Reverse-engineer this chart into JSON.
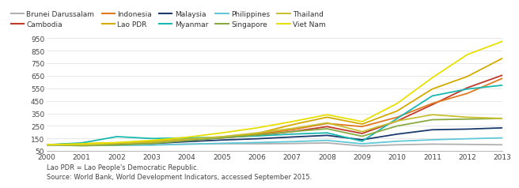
{
  "years": [
    2000,
    2001,
    2002,
    2003,
    2004,
    2005,
    2006,
    2007,
    2008,
    2009,
    2010,
    2011,
    2012,
    2013
  ],
  "series": {
    "Brunei Darussalam": [
      100,
      100,
      100,
      100,
      105,
      108,
      108,
      110,
      115,
      90,
      100,
      105,
      103,
      100
    ],
    "Cambodia": [
      100,
      103,
      110,
      120,
      140,
      155,
      175,
      205,
      245,
      190,
      290,
      420,
      555,
      655
    ],
    "Indonesia": [
      100,
      104,
      110,
      125,
      145,
      162,
      185,
      220,
      270,
      245,
      320,
      430,
      510,
      630
    ],
    "Lao PDR": [
      100,
      110,
      115,
      130,
      145,
      160,
      190,
      260,
      320,
      265,
      370,
      545,
      645,
      790
    ],
    "Malaysia": [
      100,
      97,
      100,
      110,
      125,
      138,
      148,
      162,
      175,
      140,
      185,
      220,
      225,
      235
    ],
    "Myanmar": [
      100,
      115,
      165,
      150,
      155,
      160,
      170,
      185,
      195,
      128,
      310,
      490,
      545,
      575
    ],
    "Philippines": [
      100,
      98,
      95,
      97,
      105,
      112,
      118,
      125,
      135,
      108,
      128,
      140,
      148,
      155
    ],
    "Singapore": [
      100,
      92,
      98,
      110,
      133,
      155,
      178,
      205,
      228,
      168,
      250,
      300,
      305,
      310
    ],
    "Thailand": [
      100,
      100,
      110,
      120,
      145,
      165,
      195,
      230,
      275,
      205,
      290,
      340,
      320,
      310
    ],
    "Viet Nam": [
      100,
      108,
      118,
      135,
      160,
      195,
      235,
      285,
      340,
      285,
      430,
      635,
      820,
      925
    ]
  },
  "colors": {
    "Brunei Darussalam": "#b0b0b0",
    "Cambodia": "#c0392b",
    "Indonesia": "#e07820",
    "Lao PDR": "#d4aa00",
    "Malaysia": "#1a3a6e",
    "Myanmar": "#18b8b0",
    "Philippines": "#60c8d8",
    "Singapore": "#88aa40",
    "Thailand": "#c8c030",
    "Viet Nam": "#e8e000"
  },
  "ylim": [
    50,
    1000
  ],
  "yticks": [
    50,
    150,
    250,
    350,
    450,
    550,
    650,
    750,
    850,
    950
  ],
  "bg_color": "#ffffff",
  "footnote1": "Lao PDR = Lao People's Democratic Republic.",
  "footnote2": "Source: World Bank, World Development Indicators, accessed September 2015.",
  "legend_order": [
    "Brunei Darussalam",
    "Cambodia",
    "Indonesia",
    "Lao PDR",
    "Malaysia",
    "Myanmar",
    "Philippines",
    "Singapore",
    "Thailand",
    "Viet Nam"
  ]
}
